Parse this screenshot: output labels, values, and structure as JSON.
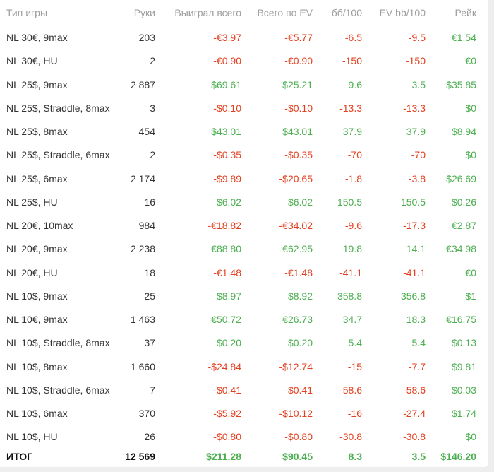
{
  "table": {
    "headers": [
      "Тип игры",
      "Руки",
      "Выиграл всего",
      "Всего по EV",
      "бб/100",
      "EV bb/100",
      "Рейк"
    ],
    "rows": [
      [
        "NL 30€, 9max",
        "203",
        "-€3.97",
        "-€5.77",
        "-6.5",
        "-9.5",
        "€1.54"
      ],
      [
        "NL 30€, HU",
        "2",
        "-€0.90",
        "-€0.90",
        "-150",
        "-150",
        "€0"
      ],
      [
        "NL 25$, 9max",
        "2 887",
        "$69.61",
        "$25.21",
        "9.6",
        "3.5",
        "$35.85"
      ],
      [
        "NL 25$, Straddle, 8max",
        "3",
        "-$0.10",
        "-$0.10",
        "-13.3",
        "-13.3",
        "$0"
      ],
      [
        "NL 25$, 8max",
        "454",
        "$43.01",
        "$43.01",
        "37.9",
        "37.9",
        "$8.94"
      ],
      [
        "NL 25$, Straddle, 6max",
        "2",
        "-$0.35",
        "-$0.35",
        "-70",
        "-70",
        "$0"
      ],
      [
        "NL 25$, 6max",
        "2 174",
        "-$9.89",
        "-$20.65",
        "-1.8",
        "-3.8",
        "$26.69"
      ],
      [
        "NL 25$, HU",
        "16",
        "$6.02",
        "$6.02",
        "150.5",
        "150.5",
        "$0.26"
      ],
      [
        "NL 20€, 10max",
        "984",
        "-€18.82",
        "-€34.02",
        "-9.6",
        "-17.3",
        "€2.87"
      ],
      [
        "NL 20€, 9max",
        "2 238",
        "€88.80",
        "€62.95",
        "19.8",
        "14.1",
        "€34.98"
      ],
      [
        "NL 20€, HU",
        "18",
        "-€1.48",
        "-€1.48",
        "-41.1",
        "-41.1",
        "€0"
      ],
      [
        "NL 10$, 9max",
        "25",
        "$8.97",
        "$8.92",
        "358.8",
        "356.8",
        "$1"
      ],
      [
        "NL 10€, 9max",
        "1 463",
        "€50.72",
        "€26.73",
        "34.7",
        "18.3",
        "€16.75"
      ],
      [
        "NL 10$, Straddle, 8max",
        "37",
        "$0.20",
        "$0.20",
        "5.4",
        "5.4",
        "$0.13"
      ],
      [
        "NL 10$, 8max",
        "1 660",
        "-$24.84",
        "-$12.74",
        "-15",
        "-7.7",
        "$9.81"
      ],
      [
        "NL 10$, Straddle, 6max",
        "7",
        "-$0.41",
        "-$0.41",
        "-58.6",
        "-58.6",
        "$0.03"
      ],
      [
        "NL 10$, 6max",
        "370",
        "-$5.92",
        "-$10.12",
        "-16",
        "-27.4",
        "$1.74"
      ],
      [
        "NL 10$, HU",
        "26",
        "-$0.80",
        "-$0.80",
        "-30.8",
        "-30.8",
        "$0"
      ]
    ],
    "total": [
      "ИТОГ",
      "12 569",
      "$211.28",
      "$90.45",
      "8.3",
      "3.5",
      "$146.20"
    ]
  },
  "colors": {
    "negative": "#e2401f",
    "positive": "#4caf50",
    "header": "#9e9e9e"
  }
}
